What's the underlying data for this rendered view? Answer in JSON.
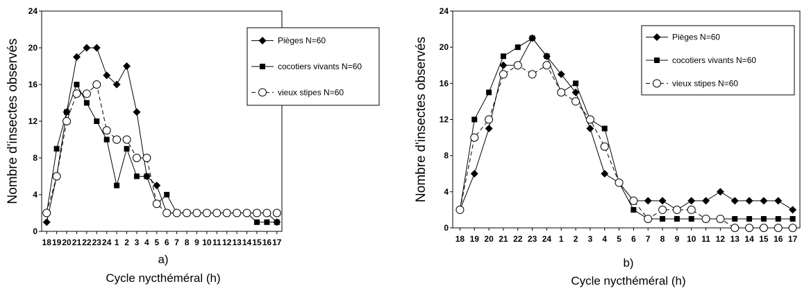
{
  "chart_data": [
    {
      "type": "line",
      "panel_label": "a)",
      "xlabel": "Cycle nycthéméral (h)",
      "ylabel": "Nombre d'insectes observés",
      "ylim": [
        0,
        24
      ],
      "yticks": [
        "0",
        "4",
        "8",
        "12",
        "16",
        "20",
        "24"
      ],
      "categories": [
        "18",
        "19",
        "20",
        "21",
        "22",
        "23",
        "24",
        "1",
        "2",
        "3",
        "4",
        "5",
        "6",
        "7",
        "8",
        "9",
        "10",
        "11",
        "12",
        "13",
        "14",
        "15",
        "16",
        "17"
      ],
      "series": [
        {
          "name": "Pièges N=60",
          "marker": "diamond",
          "dash": false,
          "values": [
            1,
            6,
            13,
            19,
            20,
            20,
            17,
            16,
            18,
            13,
            6,
            5,
            2,
            2,
            2,
            2,
            2,
            2,
            2,
            2,
            2,
            2,
            2,
            1
          ]
        },
        {
          "name": "cocotiers vivants N=60",
          "marker": "square",
          "dash": false,
          "values": [
            2,
            9,
            13,
            16,
            14,
            12,
            10,
            5,
            9,
            6,
            6,
            3,
            4,
            2,
            2,
            2,
            2,
            2,
            2,
            2,
            2,
            1,
            1,
            1
          ]
        },
        {
          "name": "vieux stipes N=60",
          "marker": "circle",
          "dash": true,
          "values": [
            2,
            6,
            12,
            15,
            15,
            16,
            11,
            10,
            10,
            8,
            8,
            3,
            2,
            2,
            2,
            2,
            2,
            2,
            2,
            2,
            2,
            2,
            2,
            2
          ]
        }
      ]
    },
    {
      "type": "line",
      "panel_label": "b)",
      "xlabel": "Cycle nycthéméral (h)",
      "ylabel": "Nombre d'insectes observés",
      "ylim": [
        0,
        24
      ],
      "yticks": [
        "0",
        "4",
        "8",
        "12",
        "16",
        "20",
        "24"
      ],
      "categories": [
        "18",
        "19",
        "20",
        "21",
        "22",
        "23",
        "24",
        "1",
        "2",
        "3",
        "4",
        "5",
        "6",
        "7",
        "8",
        "9",
        "10",
        "11",
        "12",
        "13",
        "14",
        "15",
        "16",
        "17"
      ],
      "series": [
        {
          "name": "Pièges N=60",
          "marker": "diamond",
          "dash": false,
          "values": [
            2,
            6,
            11,
            18,
            18,
            21,
            19,
            17,
            15,
            11,
            6,
            5,
            3,
            3,
            3,
            2,
            3,
            3,
            4,
            3,
            3,
            3,
            3,
            2
          ]
        },
        {
          "name": "cocotiers vivants N=60",
          "marker": "square",
          "dash": false,
          "values": [
            2,
            12,
            15,
            19,
            20,
            21,
            19,
            15,
            16,
            12,
            11,
            5,
            2,
            1,
            1,
            1,
            1,
            1,
            1,
            1,
            1,
            1,
            1,
            1
          ]
        },
        {
          "name": "vieux stipes N=60",
          "marker": "circle",
          "dash": true,
          "values": [
            2,
            10,
            12,
            17,
            18,
            17,
            18,
            15,
            14,
            12,
            9,
            5,
            3,
            1,
            2,
            2,
            2,
            1,
            1,
            0,
            0,
            0,
            0,
            0
          ]
        }
      ]
    }
  ]
}
